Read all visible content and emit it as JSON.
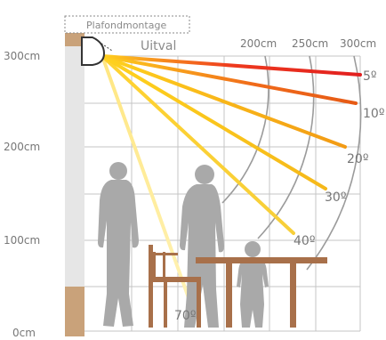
{
  "diagram": {
    "mount_label": "Plafondmontage",
    "fall_label": "Uitval",
    "height_labels": [
      "300cm",
      "200cm",
      "100cm",
      "0cm"
    ],
    "distance_labels": [
      "200cm",
      "250cm",
      "300cm"
    ],
    "angle_labels": [
      "5º",
      "10º",
      "20º",
      "30º",
      "40º",
      "70º"
    ]
  },
  "colors": {
    "grid": "#b5b5b5",
    "wall_light": "#e6e6e6",
    "wall_wood": "#c9a27a",
    "furniture": "#a8704a",
    "silhouette": "#a9a9a9",
    "label": "#777777",
    "arc": "#9b9b9b"
  }
}
